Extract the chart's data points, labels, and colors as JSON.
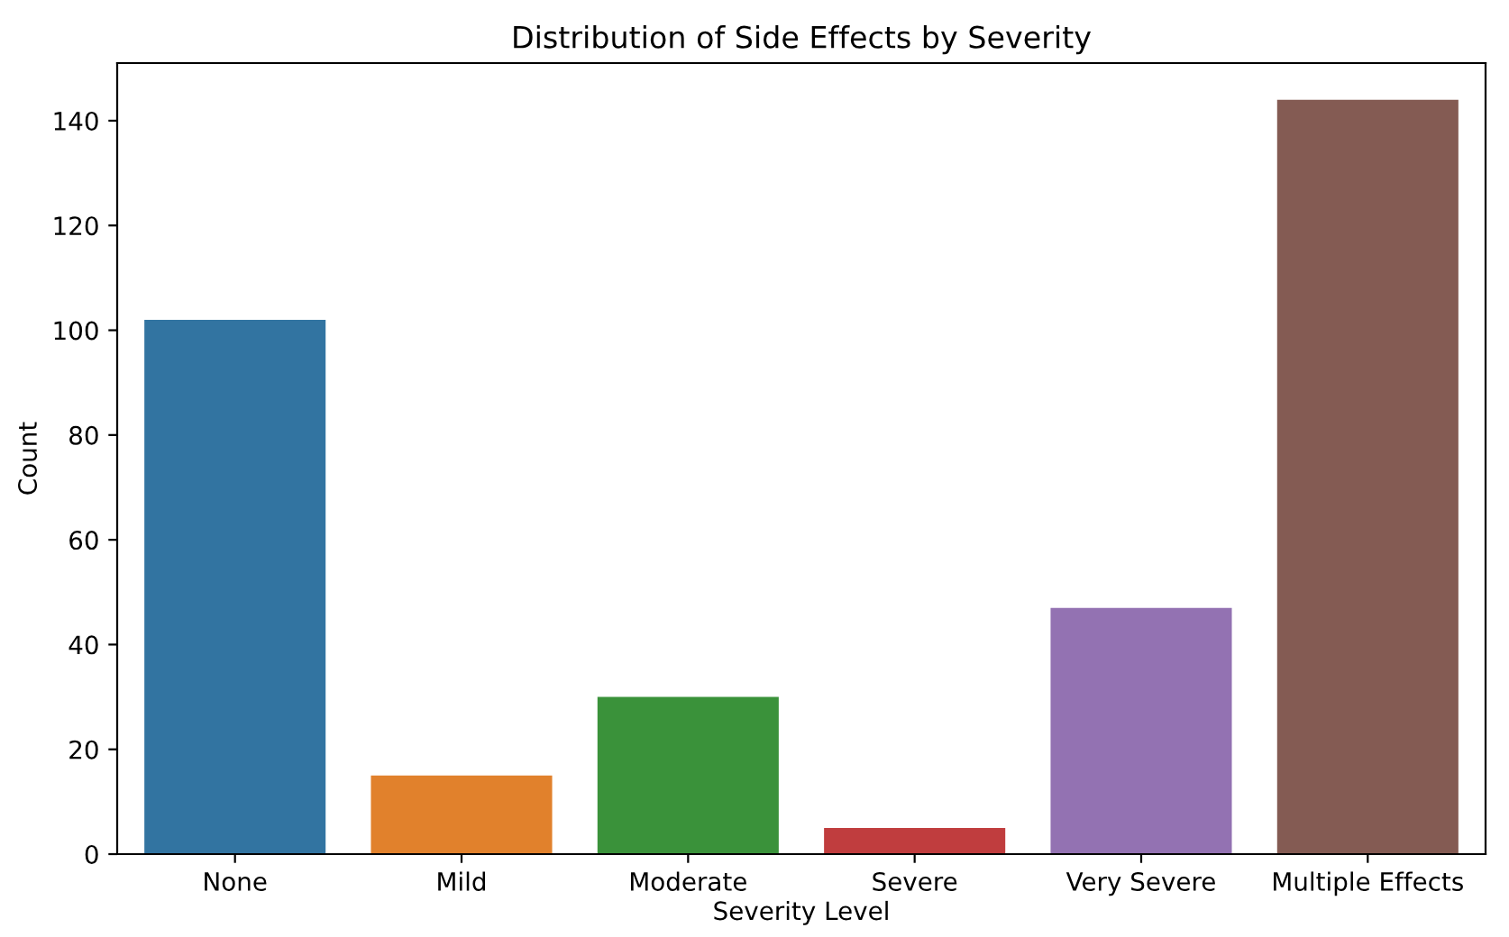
{
  "chart_data": {
    "type": "bar",
    "title": "Distribution of Side Effects by Severity",
    "xlabel": "Severity Level",
    "ylabel": "Count",
    "categories": [
      "None",
      "Mild",
      "Moderate",
      "Severe",
      "Very Severe",
      "Multiple Effects"
    ],
    "values": [
      102,
      15,
      30,
      5,
      47,
      144
    ],
    "colors": [
      "#3274a1",
      "#e1812c",
      "#3a923a",
      "#c03d3e",
      "#9372b2",
      "#845b53"
    ],
    "ylim": [
      0,
      151
    ],
    "yticks": [
      0,
      20,
      40,
      60,
      80,
      100,
      120,
      140
    ],
    "grid": false,
    "legend": false
  }
}
